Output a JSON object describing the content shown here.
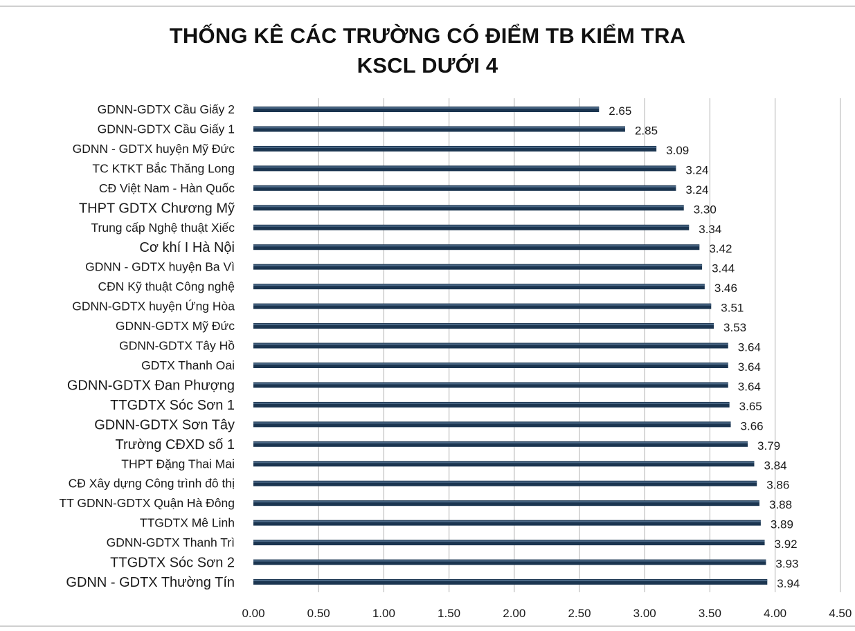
{
  "chart_data": {
    "type": "bar",
    "orientation": "horizontal",
    "title_lines": [
      "THỐNG KÊ CÁC TRƯỜNG CÓ ĐIỂM TB KIỂM TRA",
      "KSCL DƯỚI 4"
    ],
    "categories": [
      "GDNN-GDTX Cầu Giấy 2",
      "GDNN-GDTX Cầu Giấy 1",
      "GDNN - GDTX huyện Mỹ Đức",
      "TC KTKT Bắc Thăng Long",
      "CĐ Việt Nam - Hàn Quốc",
      "THPT GDTX Chương Mỹ",
      "Trung cấp Nghệ thuật Xiếc",
      "Cơ khí I Hà Nội",
      "GDNN - GDTX huyện Ba Vì",
      "CĐN Kỹ thuật Công nghệ",
      "GDNN-GDTX huyện Ứng Hòa",
      "GDNN-GDTX Mỹ Đức",
      "GDNN-GDTX Tây Hồ",
      "GDTX Thanh Oai",
      "GDNN-GDTX Đan Phượng",
      "TTGDTX Sóc Sơn 1",
      "GDNN-GDTX  Sơn Tây",
      "Trường CĐXD số 1",
      "THPT Đặng Thai Mai",
      "CĐ Xây dựng Công trình đô thị",
      "TT GDNN-GDTX Quận Hà Đông",
      "TTGDTX Mê Linh",
      "GDNN-GDTX Thanh Trì",
      "TTGDTX Sóc Sơn 2",
      "GDNN - GDTX Thường Tín"
    ],
    "values": [
      2.65,
      2.85,
      3.09,
      3.24,
      3.24,
      3.3,
      3.34,
      3.42,
      3.44,
      3.46,
      3.51,
      3.53,
      3.64,
      3.64,
      3.64,
      3.65,
      3.66,
      3.79,
      3.84,
      3.86,
      3.88,
      3.89,
      3.92,
      3.93,
      3.94
    ],
    "value_labels": [
      "2.65",
      "2.85",
      "3.09",
      "3.24",
      "3.24",
      "3.30",
      "3.34",
      "3.42",
      "3.44",
      "3.46",
      "3.51",
      "3.53",
      "3.64",
      "3.64",
      "3.64",
      "3.65",
      "3.66",
      "3.79",
      "3.84",
      "3.86",
      "3.88",
      "3.89",
      "3.92",
      "3.93",
      "3.94"
    ],
    "emphasized_labels": [
      5,
      7,
      14,
      15,
      16,
      17,
      23,
      24
    ],
    "xlim": [
      0,
      4.5
    ],
    "xticks": [
      "0.00",
      "0.50",
      "1.00",
      "1.50",
      "2.00",
      "2.50",
      "3.00",
      "3.50",
      "4.00",
      "4.50"
    ],
    "grid": "vertical",
    "legend": "none",
    "bar_color": "#1b3550",
    "bar_highlight": "#5f7f9c",
    "grid_color": "#bdbdbd"
  }
}
